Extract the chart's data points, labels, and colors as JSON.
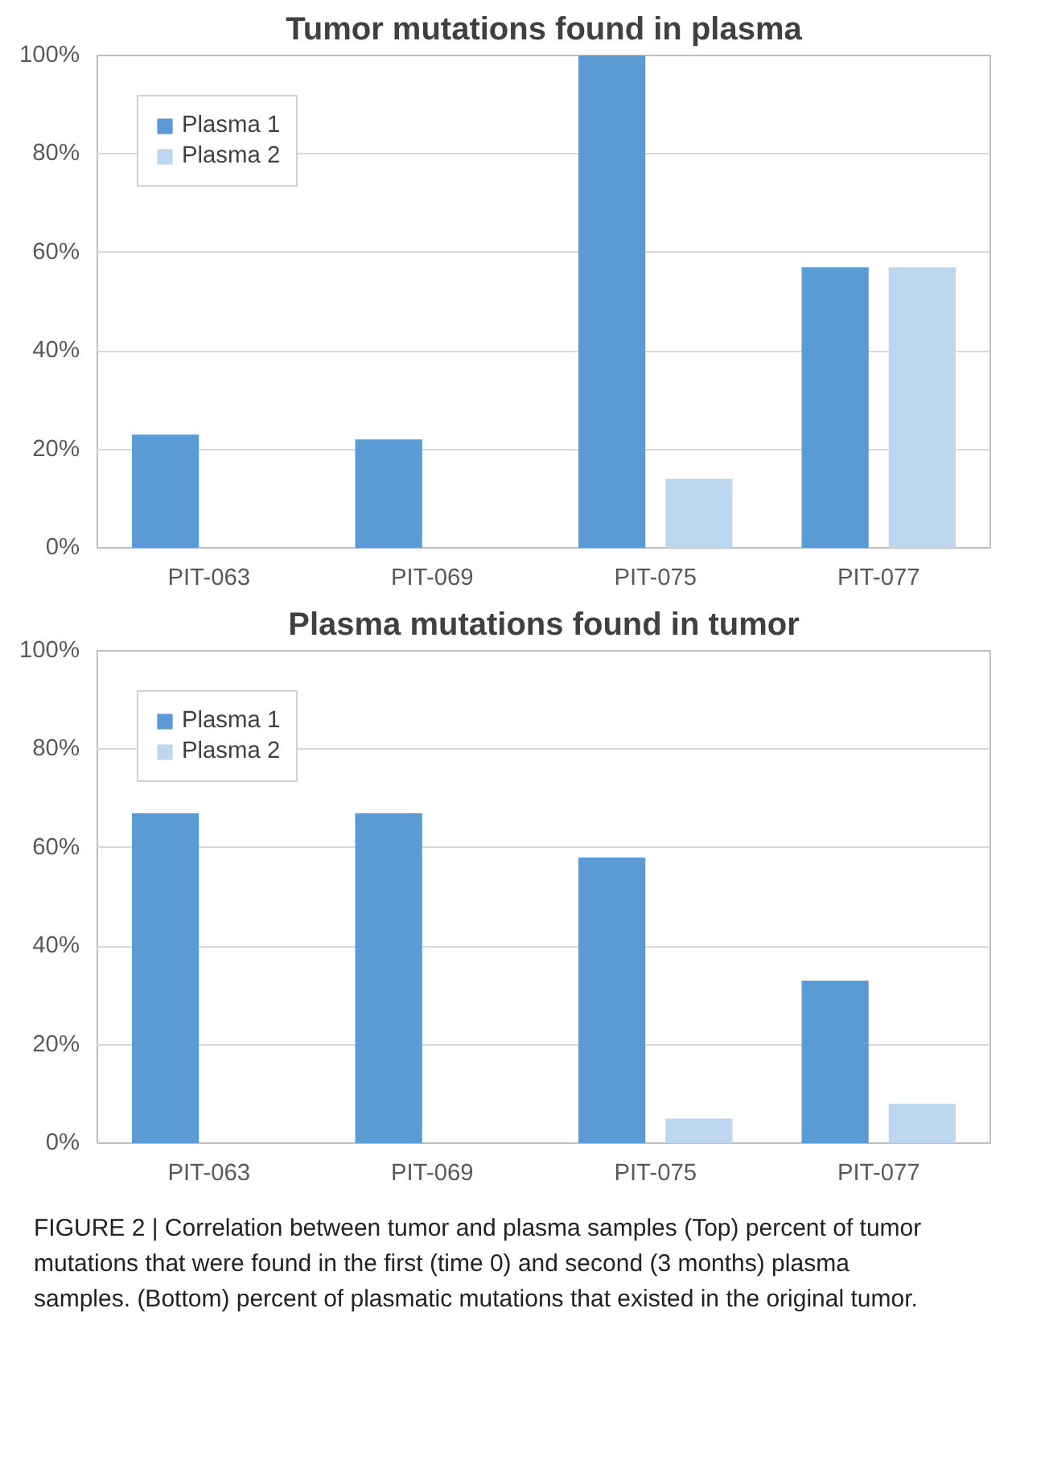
{
  "chart_data": [
    {
      "type": "bar",
      "title": "Tumor mutations found in plasma",
      "categories": [
        "PIT-063",
        "PIT-069",
        "PIT-075",
        "PIT-077"
      ],
      "series": [
        {
          "name": "Plasma 1",
          "color": "#5b9bd5",
          "values": [
            23,
            22,
            100,
            57
          ]
        },
        {
          "name": "Plasma 2",
          "color": "#bdd7ee",
          "values": [
            0,
            0,
            14,
            57
          ]
        }
      ],
      "ylim": [
        0,
        100
      ],
      "yticks": [
        {
          "value": 0,
          "label": "0%"
        },
        {
          "value": 20,
          "label": "20%"
        },
        {
          "value": 40,
          "label": "40%"
        },
        {
          "value": 60,
          "label": "60%"
        },
        {
          "value": 80,
          "label": "80%"
        },
        {
          "value": 100,
          "label": "100%"
        }
      ],
      "grid": "y",
      "legend": "top left"
    },
    {
      "type": "bar",
      "title": "Plasma mutations found in tumor",
      "categories": [
        "PIT-063",
        "PIT-069",
        "PIT-075",
        "PIT-077"
      ],
      "series": [
        {
          "name": "Plasma 1",
          "color": "#5b9bd5",
          "values": [
            67,
            67,
            58,
            33
          ]
        },
        {
          "name": "Plasma 2",
          "color": "#bdd7ee",
          "values": [
            0,
            0,
            5,
            8
          ]
        }
      ],
      "ylim": [
        0,
        100
      ],
      "yticks": [
        {
          "value": 0,
          "label": "0%"
        },
        {
          "value": 20,
          "label": "20%"
        },
        {
          "value": 40,
          "label": "40%"
        },
        {
          "value": 60,
          "label": "60%"
        },
        {
          "value": 80,
          "label": "80%"
        },
        {
          "value": 100,
          "label": "100%"
        }
      ],
      "grid": "y",
      "legend": "top left",
      "annotations": [
        "FIGURE 2 | Correlation between tumor and plasma samples (Top) percent of tumor mutations that were found in the first (time 0) and second (3 months) plasma samples. (Bottom) percent of plasmatic mutations that existed in the original tumor."
      ]
    }
  ]
}
